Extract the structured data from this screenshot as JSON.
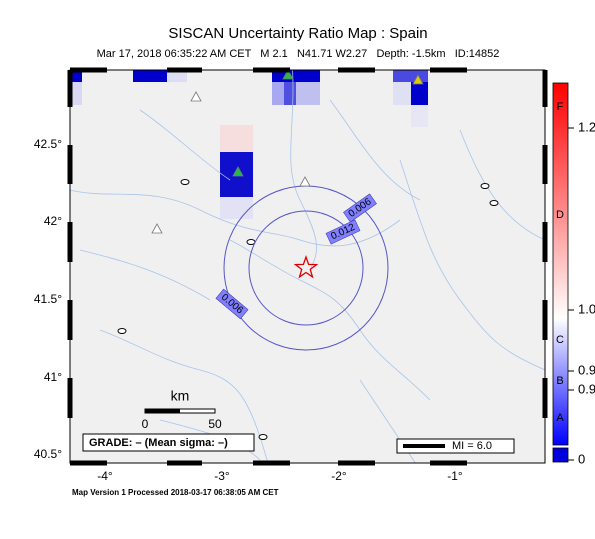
{
  "header": {
    "title": "SISCAN Uncertainty Ratio Map : Spain",
    "subtitle": "Mar 17, 2018 06:35:22 AM CET   M 2.1   N41.71 W2.27   Depth: -1.5km   ID:14852"
  },
  "map": {
    "lat_labels": [
      "42.5°",
      "42°",
      "41.5°",
      "41°",
      "40.5°"
    ],
    "lon_labels": [
      "-4°",
      "-3°",
      "-2°",
      "-1°"
    ],
    "contour_labels": [
      "0.006",
      "0.012",
      "0.006"
    ],
    "scale": {
      "unit": "km",
      "labels": [
        "0",
        "50"
      ]
    },
    "grade": "GRADE: – (Mean sigma: –)",
    "legend": "MI = 6.0"
  },
  "colorbar": {
    "grades": [
      "F",
      "D",
      "C",
      "B",
      "A"
    ],
    "ticks": [
      "1.2",
      "1.0",
      "0.9",
      "0.9",
      "0"
    ]
  },
  "footer": "Map Version 1 Processed 2018-03-17 06:38:05 AM CET"
}
